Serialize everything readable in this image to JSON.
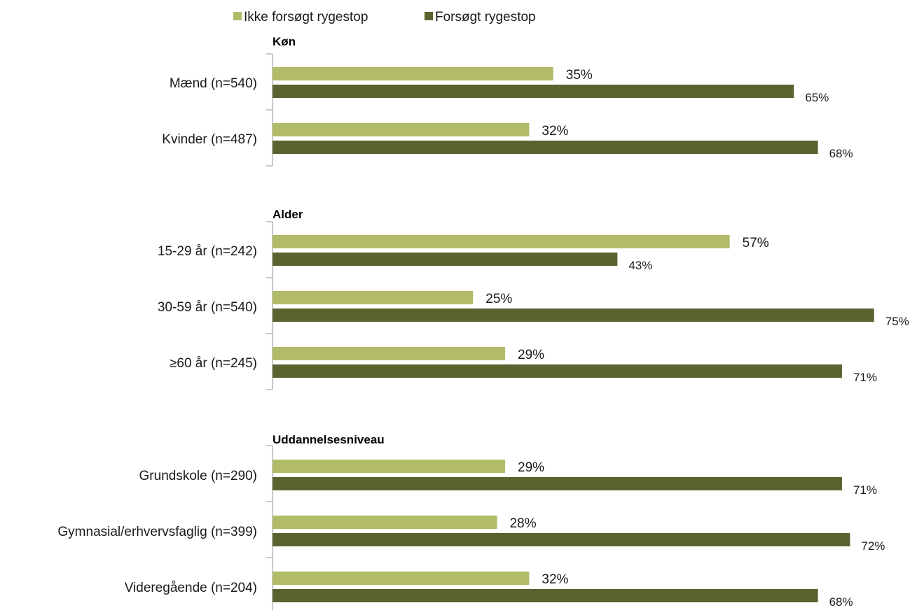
{
  "chart_data": {
    "type": "bar",
    "orientation": "horizontal",
    "title": "",
    "xlabel": "",
    "ylabel": "",
    "xlim": [
      0,
      100
    ],
    "grid": false,
    "legend_position": "top",
    "colors": {
      "ikke": "#b1bb69",
      "forsogt": "#5b6230",
      "axis": "#a6a6a6"
    },
    "series": [
      {
        "name": "Ikke forsøgt rygestop"
      },
      {
        "name": "Forsøgt rygestop"
      }
    ],
    "groups": [
      {
        "title": "Køn",
        "categories": [
          {
            "label": "Mænd (n=540)",
            "values": [
              35,
              65
            ],
            "value_labels": [
              "35%",
              "65%"
            ]
          },
          {
            "label": "Kvinder (n=487)",
            "values": [
              32,
              68
            ],
            "value_labels": [
              "32%",
              "68%"
            ]
          }
        ]
      },
      {
        "title": "Alder",
        "categories": [
          {
            "label": "15-29 år (n=242)",
            "values": [
              57,
              43
            ],
            "value_labels": [
              "57%",
              "43%"
            ]
          },
          {
            "label": "30-59 år (n=540)",
            "values": [
              25,
              75
            ],
            "value_labels": [
              "25%",
              "75%"
            ]
          },
          {
            "label": "≥60 år (n=245)",
            "values": [
              29,
              71
            ],
            "value_labels": [
              "29%",
              "71%"
            ]
          }
        ]
      },
      {
        "title": "Uddannelsesniveau",
        "categories": [
          {
            "label": "Grundskole (n=290)",
            "values": [
              29,
              71
            ],
            "value_labels": [
              "29%",
              "71%"
            ]
          },
          {
            "label": "Gymnasial/erhvervsfaglig (n=399)",
            "values": [
              28,
              72
            ],
            "value_labels": [
              "28%",
              "72%"
            ]
          },
          {
            "label": "Videregående (n=204)",
            "values": [
              32,
              68
            ],
            "value_labels": [
              "32%",
              "68%"
            ]
          }
        ]
      }
    ]
  }
}
